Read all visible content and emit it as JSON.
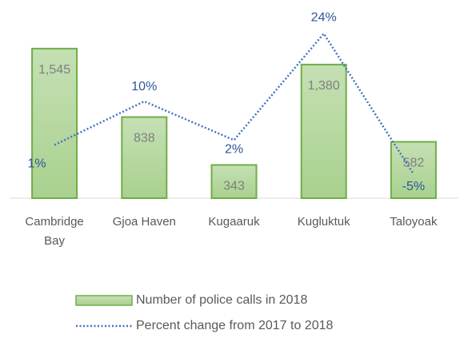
{
  "chart_data": {
    "type": "bar_line",
    "categories": [
      "Cambridge Bay",
      "Gjoa Haven",
      "Kugaaruk",
      "Kugluktuk",
      "Taloyoak"
    ],
    "series": [
      {
        "name": "Number of police calls in 2018",
        "type": "bar",
        "color": "#a9d18e",
        "values": [
          1545,
          838,
          343,
          1380,
          582
        ],
        "value_labels": [
          "1,545",
          "838",
          "343",
          "1,380",
          "582"
        ]
      },
      {
        "name": "Percent change from 2017 to 2018",
        "type": "line",
        "axis": "y2",
        "color": "#4472c4",
        "values": [
          1,
          10,
          2,
          24,
          -5
        ],
        "value_labels": [
          "1%",
          "10%",
          "2%",
          "24%",
          "-5%"
        ]
      }
    ],
    "ylim": [
      0,
      1750
    ],
    "y2lim": [
      -10,
      25
    ],
    "legend": "bottom"
  }
}
